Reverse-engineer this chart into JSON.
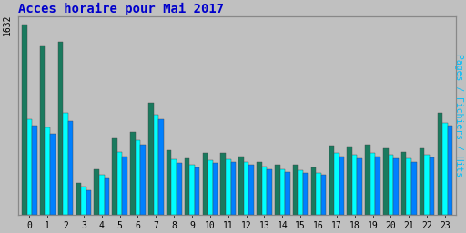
{
  "title": "Acces horaire pour Mai 2017",
  "ylabel_right": "Pages / Fichiers / Hits",
  "ytick_label": "1632",
  "hours": [
    0,
    1,
    2,
    3,
    4,
    5,
    6,
    7,
    8,
    9,
    10,
    11,
    12,
    13,
    14,
    15,
    16,
    17,
    18,
    19,
    20,
    21,
    22,
    23
  ],
  "pages": [
    1632,
    1450,
    1480,
    270,
    390,
    650,
    710,
    960,
    550,
    480,
    530,
    530,
    500,
    450,
    430,
    430,
    400,
    590,
    580,
    595,
    570,
    540,
    570,
    870
  ],
  "hits": [
    820,
    750,
    870,
    240,
    340,
    540,
    640,
    860,
    470,
    430,
    465,
    470,
    450,
    410,
    390,
    380,
    360,
    530,
    510,
    530,
    510,
    480,
    510,
    790
  ],
  "fichiers": [
    760,
    690,
    800,
    210,
    310,
    500,
    600,
    820,
    440,
    400,
    440,
    450,
    425,
    390,
    365,
    360,
    340,
    500,
    480,
    500,
    480,
    450,
    490,
    760
  ],
  "pages_color": "#1a7a5e",
  "hits_color": "#00FFFF",
  "fichiers_color": "#0080FF",
  "bg_color": "#C0C0C0",
  "plot_bg_color": "#C0C0C0",
  "title_color": "#0000CC",
  "ylabel_color": "#00BFFF",
  "grid_color": "#AAAAAA",
  "bar_width": 0.28,
  "ylim": [
    0,
    1700
  ],
  "title_fontsize": 10,
  "tick_fontsize": 7,
  "ylabel_fontsize": 7
}
